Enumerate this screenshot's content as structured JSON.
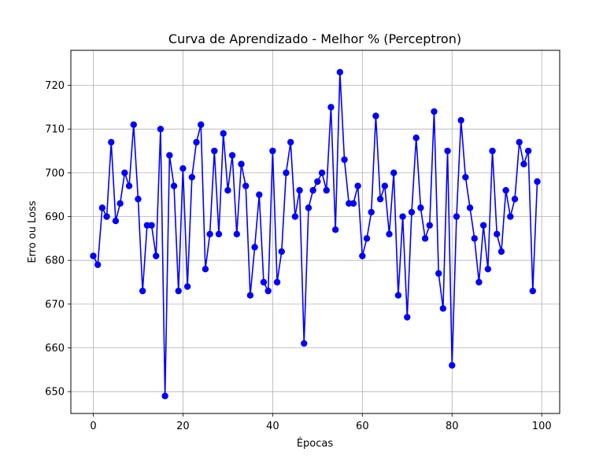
{
  "chart_data": {
    "type": "line",
    "title": "Curva de Aprendizado - Melhor % (Perceptron)",
    "xlabel": "Épocas",
    "ylabel": "Erro ou Loss",
    "xlim": [
      -5,
      104
    ],
    "ylim": [
      645,
      728
    ],
    "x_ticks": [
      0,
      20,
      40,
      60,
      80,
      100
    ],
    "y_ticks": [
      650,
      660,
      670,
      680,
      690,
      700,
      710,
      720
    ],
    "grid": true,
    "series": [
      {
        "color": "#0000ff",
        "marker": "circle",
        "x": [
          0,
          1,
          2,
          3,
          4,
          5,
          6,
          7,
          8,
          9,
          10,
          11,
          12,
          13,
          14,
          15,
          16,
          17,
          18,
          19,
          20,
          21,
          22,
          23,
          24,
          25,
          26,
          27,
          28,
          29,
          30,
          31,
          32,
          33,
          34,
          35,
          36,
          37,
          38,
          39,
          40,
          41,
          42,
          43,
          44,
          45,
          46,
          47,
          48,
          49,
          50,
          51,
          52,
          53,
          54,
          55,
          56,
          57,
          58,
          59,
          60,
          61,
          62,
          63,
          64,
          65,
          66,
          67,
          68,
          69,
          70,
          71,
          72,
          73,
          74,
          75,
          76,
          77,
          78,
          79,
          80,
          81,
          82,
          83,
          84,
          85,
          86,
          87,
          88,
          89,
          90,
          91,
          92,
          93,
          94,
          95,
          96,
          97,
          98,
          99
        ],
        "values": [
          681,
          679,
          692,
          690,
          707,
          689,
          693,
          700,
          697,
          711,
          694,
          673,
          688,
          688,
          681,
          710,
          649,
          704,
          697,
          673,
          701,
          674,
          699,
          707,
          711,
          678,
          686,
          705,
          686,
          709,
          696,
          704,
          686,
          702,
          697,
          672,
          683,
          695,
          675,
          673,
          705,
          675,
          682,
          700,
          707,
          690,
          696,
          661,
          692,
          696,
          698,
          700,
          696,
          715,
          687,
          723,
          703,
          693,
          693,
          697,
          681,
          685,
          691,
          713,
          694,
          697,
          686,
          700,
          672,
          690,
          667,
          691,
          708,
          692,
          685,
          688,
          714,
          677,
          669,
          705,
          656,
          690,
          712,
          699,
          692,
          685,
          675,
          688,
          678,
          705,
          686,
          682,
          696,
          690,
          694,
          707,
          702,
          705,
          673,
          698
        ]
      }
    ]
  }
}
